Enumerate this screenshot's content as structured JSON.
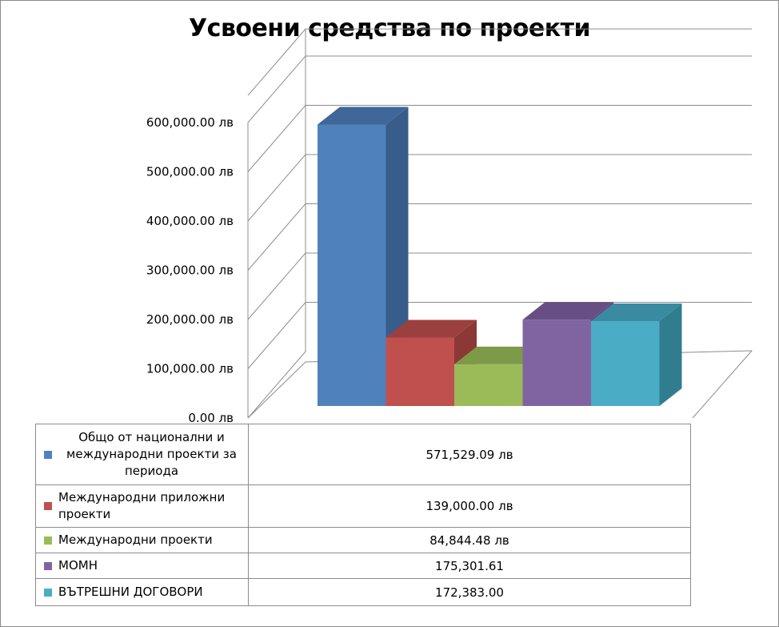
{
  "chart_data": {
    "type": "bar",
    "title": "Усвоени средства по проекти",
    "y_tick_labels": [
      "0.00 лв",
      "100,000.00 лв",
      "200,000.00 лв",
      "300,000.00 лв",
      "400,000.00 лв",
      "500,000.00 лв",
      "600,000.00 лв"
    ],
    "ylim": [
      0,
      600000
    ],
    "grid": true,
    "three_d": true,
    "legend": "data table below chart",
    "series": [
      {
        "name": "Общо от национални и международни проекти за периода",
        "value": 571529.09,
        "value_label": "571,529.09 лв",
        "color": "#4f81bd",
        "side_color": "#385d8a",
        "top_color": "#3f6797"
      },
      {
        "name": "Международни приложни проекти",
        "value": 139000.0,
        "value_label": "139,000.00 лв",
        "color": "#c0504d",
        "side_color": "#8c3836",
        "top_color": "#9b403e"
      },
      {
        "name": "Международни проекти",
        "value": 84844.48,
        "value_label": "84,844.48 лв",
        "color": "#9bbb59",
        "side_color": "#71893f",
        "top_color": "#7d9a48"
      },
      {
        "name": "МОМН",
        "value": 175301.61,
        "value_label": "175,301.61",
        "color": "#8064a2",
        "side_color": "#5c4776",
        "top_color": "#674f83"
      },
      {
        "name": "ВЪТРЕШНИ ДОГОВОРИ",
        "value": 172383.0,
        "value_label": "172,383.00",
        "color": "#4bacc6",
        "side_color": "#317d90",
        "top_color": "#3a8ba1"
      }
    ]
  }
}
